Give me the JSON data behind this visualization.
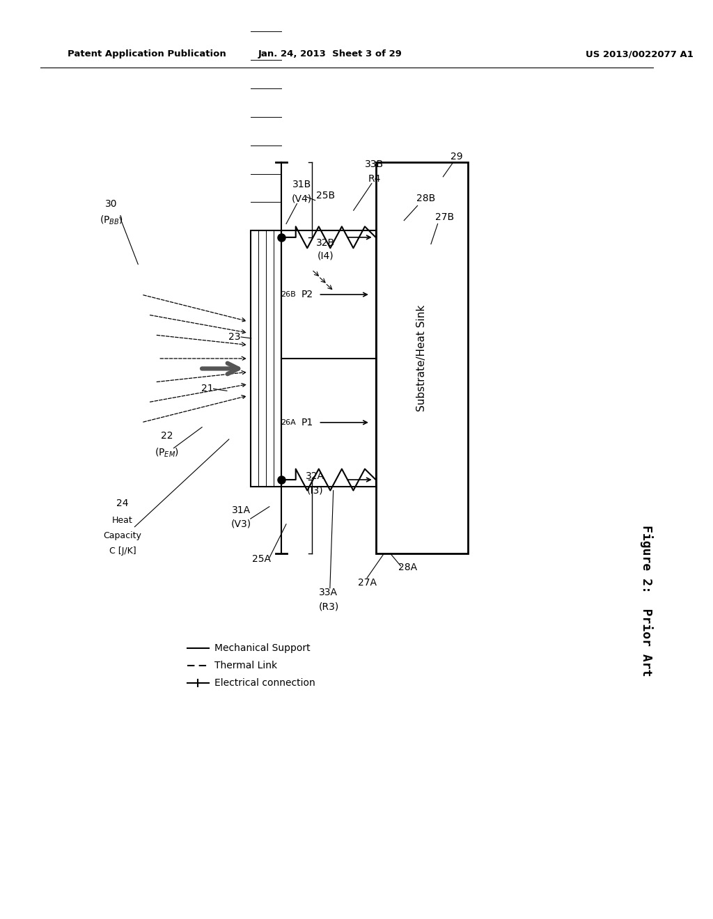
{
  "title_left": "Patent Application Publication",
  "title_mid": "Jan. 24, 2013  Sheet 3 of 29",
  "title_right": "US 2013/0022077 A1",
  "figure_caption": "Figure 2:  Prior Art",
  "bg_color": "#ffffff",
  "text_color": "#000000"
}
